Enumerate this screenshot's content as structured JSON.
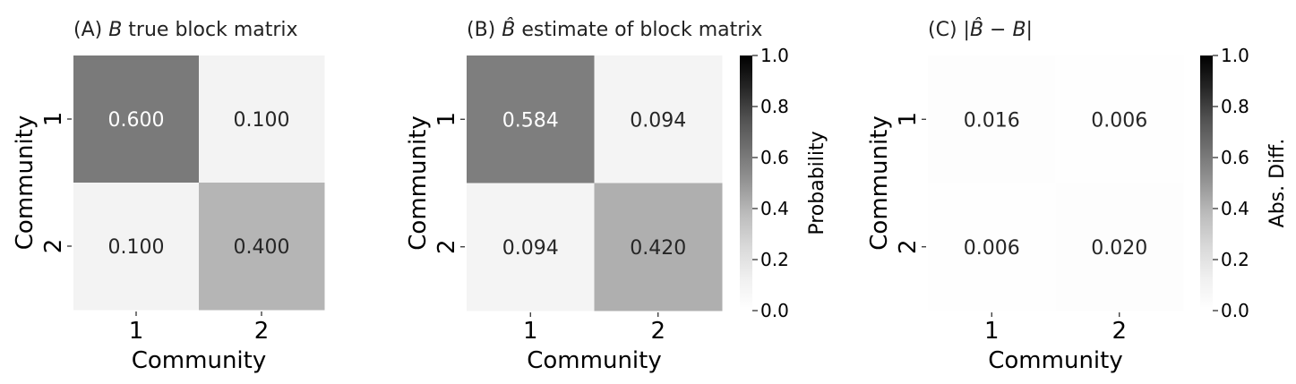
{
  "chart_data": [
    {
      "type": "heatmap",
      "title": {
        "prefix": "(A) ",
        "math": "B",
        "suffix": " true block matrix"
      },
      "xlabel": "Community",
      "ylabel": "Community",
      "x_ticks": [
        "1",
        "2"
      ],
      "y_ticks": [
        "1",
        "2"
      ],
      "values": [
        [
          0.6,
          0.1
        ],
        [
          0.1,
          0.4
        ]
      ],
      "annotations": [
        [
          "0.600",
          "0.100"
        ],
        [
          "0.100",
          "0.400"
        ]
      ],
      "vmin": 0,
      "vmax": 1,
      "colormap": "Greys",
      "colorbar": null
    },
    {
      "type": "heatmap",
      "title": {
        "prefix": "(B) ",
        "math": "B̂",
        "suffix": " estimate of block matrix"
      },
      "xlabel": "Community",
      "ylabel": "Community",
      "x_ticks": [
        "1",
        "2"
      ],
      "y_ticks": [
        "1",
        "2"
      ],
      "values": [
        [
          0.584,
          0.094
        ],
        [
          0.094,
          0.42
        ]
      ],
      "annotations": [
        [
          "0.584",
          "0.094"
        ],
        [
          "0.094",
          "0.420"
        ]
      ],
      "vmin": 0,
      "vmax": 1,
      "colormap": "Greys",
      "colorbar": {
        "label": "Probability",
        "ticks": [
          "0.0",
          "0.2",
          "0.4",
          "0.6",
          "0.8",
          "1.0"
        ]
      }
    },
    {
      "type": "heatmap",
      "title": {
        "prefix": "(C) |",
        "math": "B̂ − B",
        "suffix": "|"
      },
      "xlabel": "Community",
      "ylabel": "Community",
      "x_ticks": [
        "1",
        "2"
      ],
      "y_ticks": [
        "1",
        "2"
      ],
      "values": [
        [
          0.016,
          0.006
        ],
        [
          0.006,
          0.02
        ]
      ],
      "annotations": [
        [
          "0.016",
          "0.006"
        ],
        [
          "0.006",
          "0.020"
        ]
      ],
      "vmin": 0,
      "vmax": 1,
      "colormap": "Greys",
      "colorbar": {
        "label": "Abs. Diff.",
        "ticks": [
          "0.0",
          "0.2",
          "0.4",
          "0.6",
          "0.8",
          "1.0"
        ]
      }
    }
  ]
}
